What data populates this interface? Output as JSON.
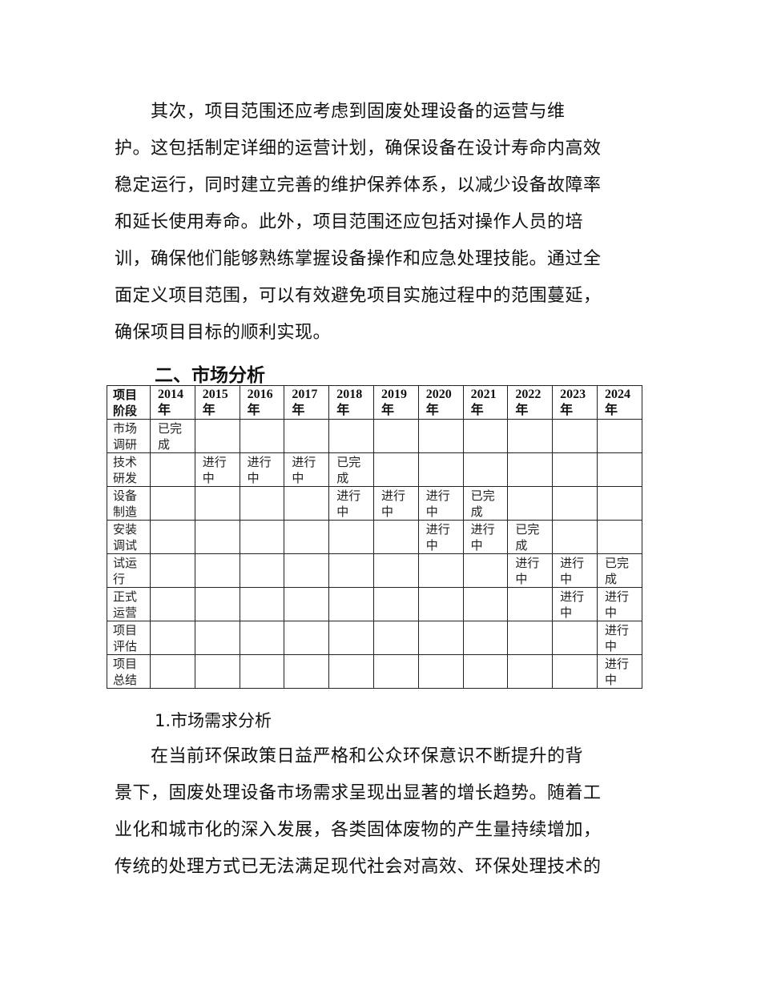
{
  "paragraph1": {
    "lines": [
      "其次，项目范围还应考虑到固废处理设备的运营与维",
      "护。这包括制定详细的运营计划，确保设备在设计寿命内高效",
      "稳定运行，同时建立完善的维护保养体系，以减少设备故障率",
      "和延长使用寿命。此外，项目范围还应包括对操作人员的培",
      "训，确保他们能够熟练掌握设备操作和应急处理技能。通过全",
      "面定义项目范围，可以有效避免项目实施过程中的范围蔓延，",
      "确保项目目标的顺利实现。"
    ]
  },
  "section_heading": "二、市场分析",
  "table": {
    "header": [
      "项目阶段",
      "2014年",
      "2015年",
      "2016年",
      "2017年",
      "2018年",
      "2019年",
      "2020年",
      "2021年",
      "2022年",
      "2023年",
      "2024年"
    ],
    "rows": [
      [
        "市场调研",
        "已完成",
        "",
        "",
        "",
        "",
        "",
        "",
        "",
        "",
        "",
        ""
      ],
      [
        "技术研发",
        "",
        "进行中",
        "进行中",
        "进行中",
        "已完成",
        "",
        "",
        "",
        "",
        "",
        ""
      ],
      [
        "设备制造",
        "",
        "",
        "",
        "",
        "进行中",
        "进行中",
        "进行中",
        "已完成",
        "",
        "",
        ""
      ],
      [
        "安装调试",
        "",
        "",
        "",
        "",
        "",
        "",
        "进行中",
        "进行中",
        "已完成",
        "",
        ""
      ],
      [
        "试运行",
        "",
        "",
        "",
        "",
        "",
        "",
        "",
        "",
        "进行中",
        "进行中",
        "已完成"
      ],
      [
        "正式运营",
        "",
        "",
        "",
        "",
        "",
        "",
        "",
        "",
        "",
        "进行中",
        "进行中"
      ],
      [
        "项目评估",
        "",
        "",
        "",
        "",
        "",
        "",
        "",
        "",
        "",
        "",
        "进行中"
      ],
      [
        "项目总结",
        "",
        "",
        "",
        "",
        "",
        "",
        "",
        "",
        "",
        "",
        "进行中"
      ]
    ]
  },
  "subsection_heading": "1.市场需求分析",
  "paragraph2": {
    "lines": [
      "在当前环保政策日益严格和公众环保意识不断提升的背",
      "景下，固废处理设备市场需求呈现出显著的增长趋势。随着工",
      "业化和城市化的深入发展，各类固体废物的产生量持续增加，",
      "传统的处理方式已无法满足现代社会对高效、环保处理技术的"
    ]
  }
}
